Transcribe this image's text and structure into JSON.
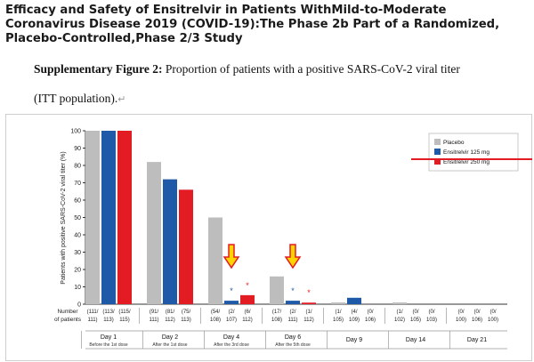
{
  "document": {
    "title_lines": [
      "Efficacy and Safety of Ensitrelvir in Patients WithMild-to-Moderate",
      "Coronavirus Disease 2019 (COVID-19):The Phase 2b Part of a Randomized,",
      "Placebo-Controlled,Phase 2/3 Study"
    ],
    "caption_label": "Supplementary Figure 2:",
    "caption_text": " Proportion of patients with a positive SARS-CoV-2 viral titer",
    "caption_line2": "(ITT population).",
    "caption_mark": "↵"
  },
  "chart_data": {
    "type": "bar",
    "ylabel": "Patients with positive SARS-CoV-2 viral titer (%)",
    "ylim": [
      0,
      100
    ],
    "yticks": [
      0,
      10,
      20,
      30,
      40,
      50,
      60,
      70,
      80,
      90,
      100
    ],
    "grid": false,
    "legend_position": "top-right",
    "row_header": [
      "Number",
      "of patients"
    ],
    "categories": [
      {
        "label": "Day 1",
        "sub": "Before the 1st dose"
      },
      {
        "label": "Day 2",
        "sub": "After the 1st dose"
      },
      {
        "label": "Day 4",
        "sub": "After the 3rd dose"
      },
      {
        "label": "Day 6",
        "sub": "After the 5th dose"
      },
      {
        "label": "Day 9",
        "sub": ""
      },
      {
        "label": "Day 14",
        "sub": ""
      },
      {
        "label": "Day 21",
        "sub": ""
      }
    ],
    "series": [
      {
        "name": "Placebo",
        "color": "#bdbdbd",
        "values": [
          100,
          82,
          50,
          16,
          1,
          1,
          0
        ],
        "n_line1": [
          "(111/",
          "(91/",
          "(54/",
          "(17/",
          "(1/",
          "(1/",
          "(0/"
        ],
        "n_line2": [
          "111)",
          "111)",
          "108)",
          "108)",
          "105)",
          "102)",
          "100)"
        ]
      },
      {
        "name": "Ensitrelvir 125 mg",
        "color": "#1f5aa8",
        "values": [
          100,
          72,
          2,
          2,
          3.7,
          0,
          0
        ],
        "n_line1": [
          "(113/",
          "(81/",
          "(2/",
          "(2/",
          "(4/",
          "(0/",
          "(0/"
        ],
        "n_line2": [
          "113)",
          "112)",
          "107)",
          "111)",
          "109)",
          "105)",
          "106)"
        ]
      },
      {
        "name": "Ensitrelvir 250 mg",
        "color": "#e31b23",
        "values": [
          100,
          66,
          5.2,
          0.9,
          0,
          0,
          0
        ],
        "n_line1": [
          "(115/",
          "(75/",
          "(6/",
          "(1/",
          "(0/",
          "(0/",
          "(0/"
        ],
        "n_line2": [
          "115)",
          "113)",
          "112)",
          "112)",
          "106)",
          "103)",
          "100)"
        ]
      }
    ],
    "significance_marks": [
      {
        "category": "Day 4",
        "series": "Ensitrelvir 125 mg",
        "text": "*"
      },
      {
        "category": "Day 4",
        "series": "Ensitrelvir 250 mg",
        "text": "*"
      },
      {
        "category": "Day 6",
        "series": "Ensitrelvir 125 mg",
        "text": "*"
      },
      {
        "category": "Day 6",
        "series": "Ensitrelvir 250 mg",
        "text": "*"
      }
    ],
    "highlight_arrows": [
      "Day 4",
      "Day 6"
    ],
    "marker_line_color": "#e31b23",
    "arrow_color": "#ffd400",
    "arrow_stroke": "#e31b23"
  }
}
